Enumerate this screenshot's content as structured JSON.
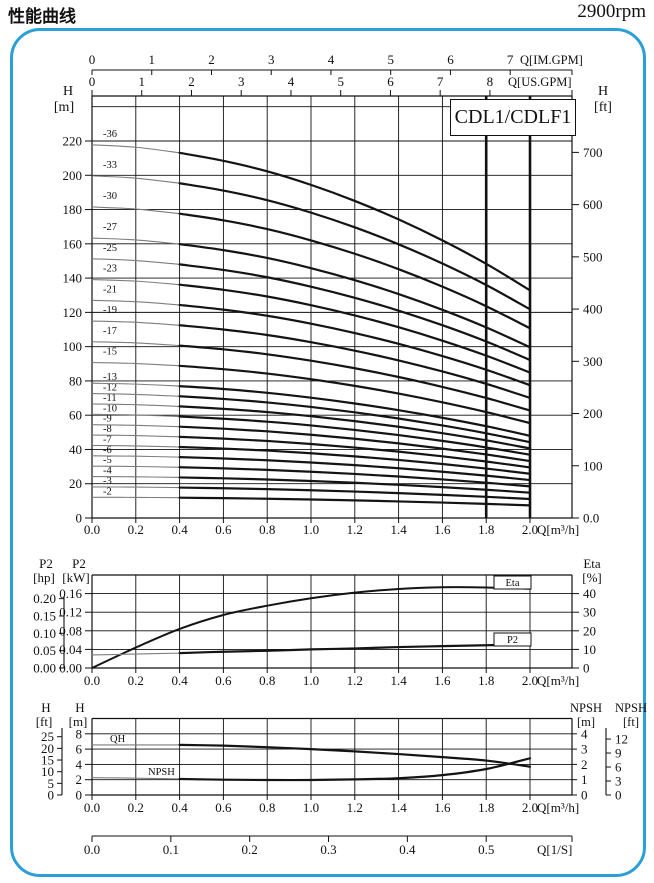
{
  "header": {
    "title": "性能曲线",
    "rpm": "2900rpm"
  },
  "chart_data": [
    {
      "type": "line",
      "name": "head-vs-flow",
      "model": "CDL1/CDLF1",
      "xlabel": "Q[m³/h]",
      "x_top_axis_1": {
        "title": "Q[IM.GPM]",
        "ticks": [
          "0",
          "1",
          "2",
          "3",
          "4",
          "5",
          "6",
          "7"
        ]
      },
      "x_top_axis_2": {
        "title": "Q[US.GPM]",
        "ticks": [
          "0",
          "1",
          "2",
          "3",
          "4",
          "5",
          "6",
          "7",
          "8"
        ]
      },
      "y_left": {
        "title_1": "H",
        "title_2": "[m]",
        "ticks": [
          "0",
          "20",
          "40",
          "60",
          "80",
          "100",
          "120",
          "140",
          "160",
          "180",
          "200",
          "220"
        ]
      },
      "y_right": {
        "title_1": "H",
        "title_2": "[ft]",
        "ticks": [
          "0.0",
          "100",
          "200",
          "300",
          "400",
          "500",
          "600",
          "700"
        ]
      },
      "x_bottom_ticks": [
        "0.0",
        "0.2",
        "0.4",
        "0.6",
        "0.8",
        "1.0",
        "1.2",
        "1.4",
        "1.6",
        "1.8",
        "2.0"
      ],
      "q": [
        0,
        0.2,
        0.4,
        0.6,
        0.8,
        1.0,
        1.2,
        1.4,
        1.6,
        1.8,
        2.0
      ],
      "single_stage_head_m": [
        6.05,
        6.01,
        5.92,
        5.79,
        5.62,
        5.4,
        5.14,
        4.84,
        4.5,
        4.12,
        3.69
      ],
      "stages": [
        2,
        3,
        4,
        5,
        6,
        7,
        8,
        9,
        10,
        11,
        12,
        13,
        15,
        17,
        19,
        21,
        23,
        25,
        27,
        30,
        33,
        36
      ],
      "ylim_m": [
        0,
        246
      ],
      "grid_step_m": 20,
      "bold_from_q": 0.4,
      "bold_vertical_lines_q": [
        1.8,
        2.0
      ]
    },
    {
      "type": "line",
      "name": "power-and-efficiency",
      "xlabel": "Q[m³/h]",
      "x_bottom_ticks": [
        "0.0",
        "0.2",
        "0.4",
        "0.6",
        "0.8",
        "1.0",
        "1.2",
        "1.4",
        "1.6",
        "1.8",
        "2.0"
      ],
      "y_left_outer": {
        "title_1": "P2",
        "title_2": "[hp]",
        "ticks": [
          "0.00",
          "0.05",
          "0.10",
          "0.15",
          "0.20"
        ]
      },
      "y_left_inner": {
        "title_1": "P2",
        "title_2": "[kW]",
        "ticks": [
          "0.00",
          "0.04",
          "0.08",
          "0.12",
          "0.16"
        ]
      },
      "y_right": {
        "title_1": "Eta",
        "title_2": "[%]",
        "ticks": [
          "0",
          "10",
          "20",
          "30",
          "40"
        ]
      },
      "q": [
        0,
        0.2,
        0.4,
        0.6,
        0.8,
        1.0,
        1.2,
        1.4,
        1.6,
        1.8,
        2.0
      ],
      "series": [
        {
          "name": "Eta",
          "unit": "%",
          "values": [
            0,
            11,
            21,
            28.5,
            33.5,
            37.5,
            40.5,
            42.5,
            43.4,
            43.3,
            42.6
          ]
        },
        {
          "name": "P2",
          "unit": "kW",
          "values": [
            0.028,
            0.03,
            0.032,
            0.035,
            0.037,
            0.04,
            0.042,
            0.045,
            0.047,
            0.049,
            0.051
          ]
        }
      ],
      "ylim_eta_pct": [
        0,
        50
      ],
      "bold_from_q": 0.4
    },
    {
      "type": "line",
      "name": "qh-and-npsh",
      "xlabel": "Q[m³/h]",
      "x_bottom_ticks": [
        "0.0",
        "0.2",
        "0.4",
        "0.6",
        "0.8",
        "1.0",
        "1.2",
        "1.4",
        "1.6",
        "1.8",
        "2.0"
      ],
      "x_second_axis": {
        "title": "Q[1/S]",
        "ticks": [
          "0.0",
          "0.1",
          "0.2",
          "0.3",
          "0.4",
          "0.5"
        ]
      },
      "y_left_outer": {
        "title_1": "H",
        "title_2": "[ft]",
        "ticks": [
          "0",
          "5",
          "10",
          "15",
          "20",
          "25"
        ]
      },
      "y_left_inner": {
        "title_1": "H",
        "title_2": "[m]",
        "ticks": [
          "0",
          "2",
          "4",
          "6",
          "8"
        ]
      },
      "y_right_inner": {
        "title_1": "NPSH",
        "title_2": "[m]",
        "ticks": [
          "0",
          "1",
          "2",
          "3",
          "4"
        ]
      },
      "y_right_outer": {
        "title_1": "NPSH",
        "title_2": "[ft]",
        "ticks": [
          "0",
          "3",
          "6",
          "9",
          "12"
        ]
      },
      "q": [
        0,
        0.2,
        0.4,
        0.6,
        0.8,
        1.0,
        1.2,
        1.4,
        1.6,
        1.8,
        2.0
      ],
      "series": [
        {
          "name": "QH",
          "unit": "m",
          "values": [
            6.55,
            6.55,
            6.55,
            6.45,
            6.25,
            6.0,
            5.7,
            5.35,
            4.95,
            4.5,
            3.7
          ]
        },
        {
          "name": "NPSH",
          "unit": "m NPSH",
          "values": [
            1.13,
            1.1,
            1.05,
            1.0,
            0.98,
            0.98,
            1.02,
            1.1,
            1.3,
            1.7,
            2.4
          ]
        }
      ],
      "ylim_h_m": [
        0,
        10
      ],
      "bold_from_q": 0.4
    }
  ]
}
